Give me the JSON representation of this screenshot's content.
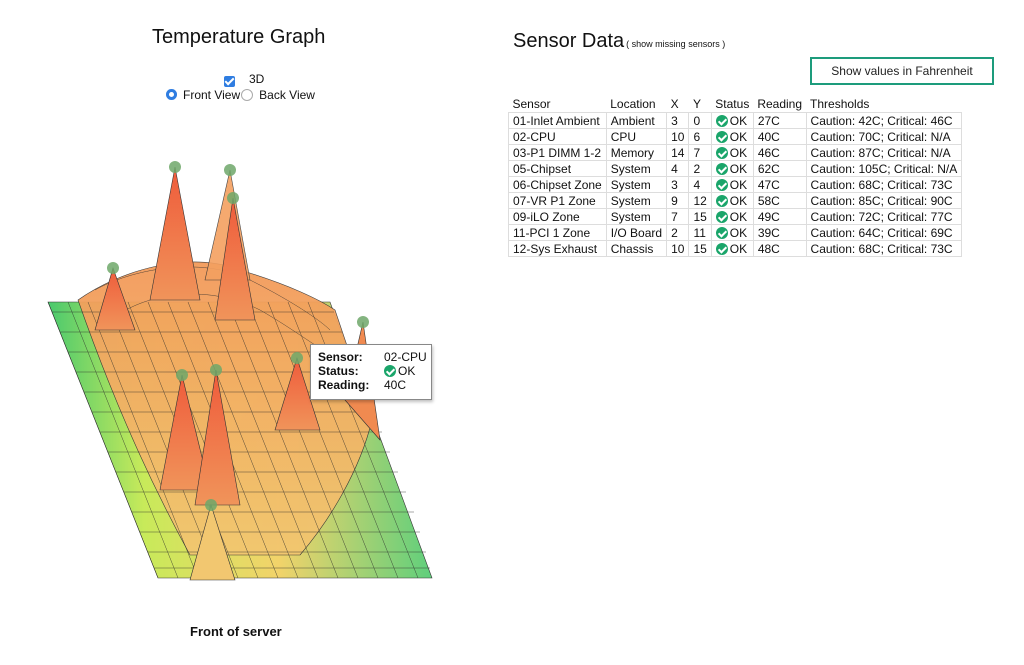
{
  "graph": {
    "title": "Temperature Graph",
    "checkbox_3d_label": "3D",
    "checkbox_3d_checked": true,
    "front_view_label": "Front View",
    "back_view_label": "Back View",
    "selected_view": "Front View",
    "footer_label": "Front of server"
  },
  "tooltip": {
    "sensor_label": "Sensor:",
    "sensor_value": "02-CPU",
    "status_label": "Status:",
    "status_value": "OK",
    "reading_label": "Reading:",
    "reading_value": "40C"
  },
  "sensors": {
    "title": "Sensor Data",
    "missing_link": "( show missing sensors )",
    "fahrenheit_button": "Show values in Fahrenheit",
    "columns": [
      "Sensor",
      "Location",
      "X",
      "Y",
      "Status",
      "Reading",
      "Thresholds"
    ],
    "rows": [
      [
        "01-Inlet Ambient",
        "Ambient",
        "3",
        "0",
        "OK",
        "27C",
        "Caution: 42C; Critical: 46C"
      ],
      [
        "02-CPU",
        "CPU",
        "10",
        "6",
        "OK",
        "40C",
        "Caution: 70C; Critical: N/A"
      ],
      [
        "03-P1 DIMM 1-2",
        "Memory",
        "14",
        "7",
        "OK",
        "46C",
        "Caution: 87C; Critical: N/A"
      ],
      [
        "05-Chipset",
        "System",
        "4",
        "2",
        "OK",
        "62C",
        "Caution: 105C; Critical: N/A"
      ],
      [
        "06-Chipset Zone",
        "System",
        "3",
        "4",
        "OK",
        "47C",
        "Caution: 68C; Critical: 73C"
      ],
      [
        "07-VR P1 Zone",
        "System",
        "9",
        "12",
        "OK",
        "58C",
        "Caution: 85C; Critical: 90C"
      ],
      [
        "09-iLO Zone",
        "System",
        "7",
        "15",
        "OK",
        "49C",
        "Caution: 72C; Critical: 77C"
      ],
      [
        "11-PCI 1 Zone",
        "I/O Board",
        "2",
        "11",
        "OK",
        "39C",
        "Caution: 64C; Critical: 69C"
      ],
      [
        "12-Sys Exhaust",
        "Chassis",
        "10",
        "15",
        "OK",
        "48C",
        "Caution: 68C; Critical: 73C"
      ]
    ]
  },
  "colors": {
    "ok_green": "#1aa56a",
    "button_border": "#1d9c7c",
    "radio_blue": "#2f7de1"
  }
}
